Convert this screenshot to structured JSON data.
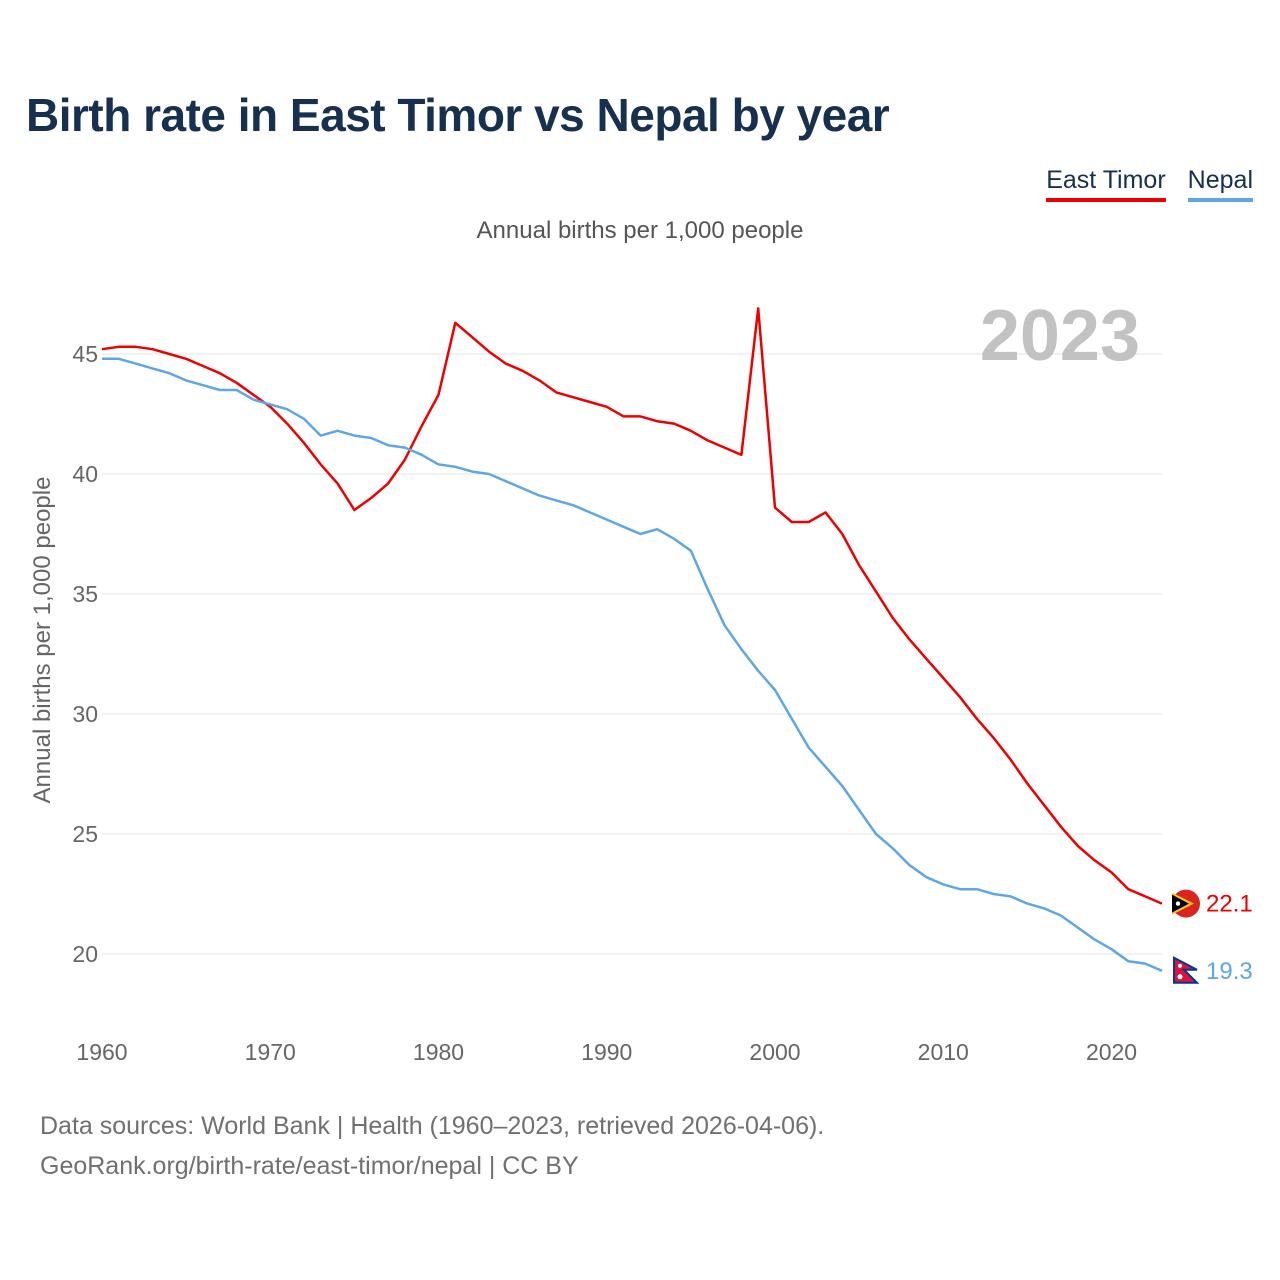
{
  "title": "Birth rate in East Timor vs Nepal by year",
  "subtitle": "Annual births per 1,000 people",
  "legend": [
    {
      "name": "East Timor",
      "color": "#ee0000"
    },
    {
      "name": "Nepal",
      "color": "#5ea6e6"
    }
  ],
  "year_badge": "2023",
  "footer": {
    "line1": "Data sources: World Bank | Health (1960–2023, retrieved 2026-04-06).",
    "line2": "GeoRank.org/birth-rate/east-timor/nepal | CC BY"
  },
  "chart_data": {
    "type": "line",
    "title": "Birth rate in East Timor vs Nepal by year",
    "ylabel": "Annual births per 1,000 people",
    "xlabel": "",
    "xlim": [
      1960,
      2023
    ],
    "ylim": [
      18,
      47
    ],
    "x_ticks": [
      1960,
      1970,
      1980,
      1990,
      2000,
      2010,
      2020
    ],
    "y_ticks": [
      20,
      25,
      30,
      35,
      40,
      45
    ],
    "grid": true,
    "legend_position": "top-right",
    "x": [
      1960,
      1961,
      1962,
      1963,
      1964,
      1965,
      1966,
      1967,
      1968,
      1969,
      1970,
      1971,
      1972,
      1973,
      1974,
      1975,
      1976,
      1977,
      1978,
      1979,
      1980,
      1981,
      1982,
      1983,
      1984,
      1985,
      1986,
      1987,
      1988,
      1989,
      1990,
      1991,
      1992,
      1993,
      1994,
      1995,
      1996,
      1997,
      1998,
      1999,
      2000,
      2001,
      2002,
      2003,
      2004,
      2005,
      2006,
      2007,
      2008,
      2009,
      2010,
      2011,
      2012,
      2013,
      2014,
      2015,
      2016,
      2017,
      2018,
      2019,
      2020,
      2021,
      2022,
      2023
    ],
    "series": [
      {
        "name": "East Timor",
        "color": "#ee0000",
        "end_label": "22.1",
        "values": [
          45.2,
          45.3,
          45.3,
          45.2,
          45.0,
          44.8,
          44.5,
          44.2,
          43.8,
          43.3,
          42.8,
          42.1,
          41.3,
          40.4,
          39.6,
          38.5,
          39.0,
          39.6,
          40.6,
          42.0,
          43.3,
          46.3,
          45.7,
          45.1,
          44.6,
          44.3,
          43.9,
          43.4,
          43.2,
          43.0,
          42.8,
          42.4,
          42.4,
          42.2,
          42.1,
          41.8,
          41.4,
          41.1,
          40.8,
          46.9,
          38.6,
          38.0,
          38.0,
          38.4,
          37.5,
          36.2,
          35.1,
          34.0,
          33.1,
          32.3,
          31.5,
          30.7,
          29.8,
          29.0,
          28.1,
          27.1,
          26.2,
          25.3,
          24.5,
          23.9,
          23.4,
          22.7,
          22.4,
          22.1
        ]
      },
      {
        "name": "Nepal",
        "color": "#5ea6e6",
        "end_label": "19.3",
        "values": [
          44.8,
          44.8,
          44.6,
          44.4,
          44.2,
          43.9,
          43.7,
          43.5,
          43.5,
          43.1,
          42.9,
          42.7,
          42.3,
          41.6,
          41.8,
          41.6,
          41.5,
          41.2,
          41.1,
          40.8,
          40.4,
          40.3,
          40.1,
          40.0,
          39.7,
          39.4,
          39.1,
          38.9,
          38.7,
          38.4,
          38.1,
          37.8,
          37.5,
          37.7,
          37.3,
          36.8,
          35.2,
          33.7,
          32.7,
          31.8,
          31.0,
          29.8,
          28.6,
          27.8,
          27.0,
          26.0,
          25.0,
          24.4,
          23.7,
          23.2,
          22.9,
          22.7,
          22.7,
          22.5,
          22.4,
          22.1,
          21.9,
          21.6,
          21.1,
          20.6,
          20.2,
          19.7,
          19.6,
          19.3
        ]
      }
    ]
  }
}
